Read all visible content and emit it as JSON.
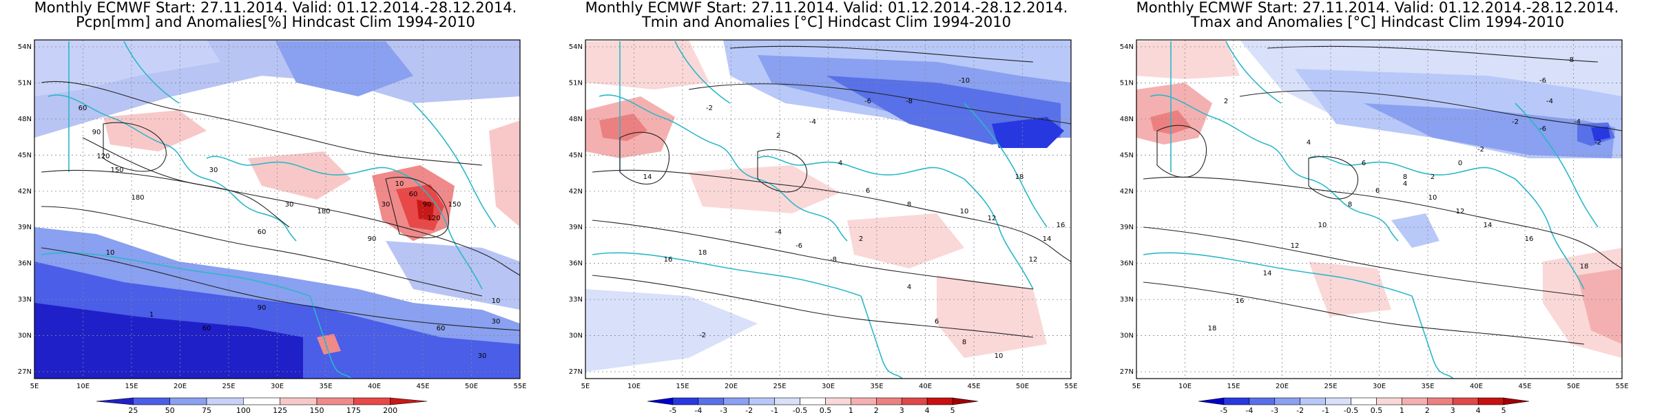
{
  "panels": [
    {
      "id": "pcpn",
      "title_line1": "Monthly ECMWF Start: 27.11.2014. Valid: 01.12.2014.-28.12.2014.",
      "title_line2": "Pcpn[mm] and Anomalies[%] Hindcast Clim 1994-2010",
      "colorbar": {
        "labels": [
          "25",
          "50",
          "75",
          "100",
          "125",
          "150",
          "175",
          "200"
        ],
        "colors": [
          "#2020c8",
          "#4a5ee8",
          "#8aa0f0",
          "#c8d2f8",
          "#ffffff",
          "#f8c8c8",
          "#f08a8a",
          "#e84848",
          "#c81818"
        ]
      },
      "contour_labels": [
        "60",
        "90",
        "120",
        "150",
        "180",
        "30",
        "10",
        "1",
        "60",
        "30",
        "90",
        "30",
        "10",
        "60",
        "90",
        "120",
        "150",
        "180",
        "90",
        "60",
        "30",
        "10",
        "30",
        "60"
      ]
    },
    {
      "id": "tmin",
      "title_line1": "Monthly ECMWF Start: 27.11.2014. Valid: 01.12.2014.-28.12.2014.",
      "title_line2": "Tmin and Anomalies [°C] Hindcast Clim 1994-2010",
      "colorbar": {
        "labels": [
          "-5",
          "-4",
          "-3",
          "-2",
          "-1",
          "-0.5",
          "0.5",
          "1",
          "2",
          "3",
          "4",
          "5"
        ],
        "colors": [
          "#0000c8",
          "#2838e0",
          "#5870e8",
          "#8aa0f0",
          "#b8c8f8",
          "#d8e0fa",
          "#ffffff",
          "#fad8d8",
          "#f4b0b0",
          "#ec8080",
          "#e04848",
          "#c81010",
          "#a00000"
        ]
      },
      "contour_labels": [
        "-10",
        "-8",
        "-6",
        "-4",
        "-2",
        "2",
        "4",
        "6",
        "8",
        "10",
        "12",
        "14",
        "16",
        "18",
        "-2",
        "-4",
        "-6",
        "-8",
        "2",
        "4",
        "6",
        "8",
        "10",
        "12",
        "14",
        "16",
        "18"
      ]
    },
    {
      "id": "tmax",
      "title_line1": "Monthly ECMWF Start: 27.11.2014. Valid: 01.12.2014.-28.12.2014.",
      "title_line2": "Tmax and Anomalies [°C] Hindcast Clim 1994-2010",
      "colorbar": {
        "labels": [
          "-5",
          "-4",
          "-3",
          "-2",
          "-1",
          "-0.5",
          "0.5",
          "1",
          "2",
          "3",
          "4",
          "5"
        ],
        "colors": [
          "#0000c8",
          "#2838e0",
          "#5870e8",
          "#8aa0f0",
          "#b8c8f8",
          "#d8e0fa",
          "#ffffff",
          "#fad8d8",
          "#f4b0b0",
          "#ec8080",
          "#e04848",
          "#c81010",
          "#a00000"
        ]
      },
      "contour_labels": [
        "-8",
        "-6",
        "-4",
        "-2",
        "2",
        "4",
        "6",
        "8",
        "10",
        "12",
        "14",
        "16",
        "18",
        "-2",
        "-4",
        "-6",
        "-2",
        "0",
        "2",
        "4",
        "6",
        "8",
        "10",
        "12",
        "14",
        "16",
        "18"
      ]
    }
  ],
  "axes": {
    "lat_labels": [
      "54N",
      "51N",
      "48N",
      "45N",
      "42N",
      "39N",
      "36N",
      "33N",
      "30N",
      "27N"
    ],
    "lon_labels": [
      "5E",
      "10E",
      "15E",
      "20E",
      "25E",
      "30E",
      "35E",
      "40E",
      "45E",
      "50E",
      "55E"
    ]
  }
}
